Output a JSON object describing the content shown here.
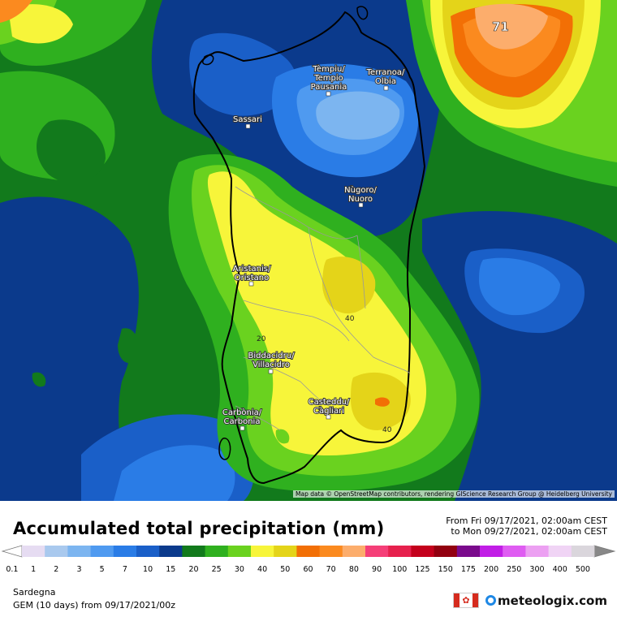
{
  "map": {
    "max_value_label": "71",
    "contour_labels": [
      "20",
      "40",
      "40"
    ],
    "attribution": "Map data © OpenStreetMap contributors, rendering GIScience Research Group @ Heidelberg University",
    "cities": [
      {
        "id": "tempio",
        "lines": [
          "Tèmpiu/",
          "Tempio",
          "Pausania"
        ]
      },
      {
        "id": "olbia",
        "lines": [
          "Terranoa/",
          "Olbia"
        ]
      },
      {
        "id": "sassari",
        "lines": [
          "Sassari"
        ]
      },
      {
        "id": "nuoro",
        "lines": [
          "Nùgoro/",
          "Nuoro"
        ]
      },
      {
        "id": "oristano",
        "lines": [
          "Aristanis/",
          "Oristano"
        ]
      },
      {
        "id": "villacidro",
        "lines": [
          "Biddacidru/",
          "Villacidro"
        ]
      },
      {
        "id": "cagliari",
        "lines": [
          "Casteddu/",
          "Càgliari"
        ]
      },
      {
        "id": "carbonia",
        "lines": [
          "Carbònia/",
          "Carbonia"
        ]
      }
    ]
  },
  "legend": {
    "title": "Accumulated total precipitation (mm)",
    "period_from": "From Fri 09/17/2021, 02:00am CEST",
    "period_to": "to Mon 09/27/2021, 02:00am CEST",
    "ticks": [
      "0.1",
      "1",
      "2",
      "3",
      "5",
      "7",
      "10",
      "15",
      "20",
      "25",
      "30",
      "40",
      "50",
      "60",
      "70",
      "80",
      "90",
      "100",
      "125",
      "150",
      "175",
      "200",
      "250",
      "300",
      "400",
      "500"
    ],
    "colors": [
      "#e6dcf2",
      "#a9c9ee",
      "#7cb5f0",
      "#4f9af0",
      "#2a7ce6",
      "#1a5fc8",
      "#0b3a8c",
      "#127a1c",
      "#2fb01f",
      "#6ad21f",
      "#f7f53a",
      "#e4d419",
      "#f26f05",
      "#fb8a1f",
      "#fcad6c",
      "#f53f78",
      "#e6214d",
      "#c4001c",
      "#920010",
      "#7a0a8c",
      "#c11ee6",
      "#df5cf2",
      "#eca0f2",
      "#f0d4f5",
      "#dad6dc"
    ]
  },
  "footer": {
    "region": "Sardegna",
    "model": "GEM (10 days) from 09/17/2021/00z",
    "brand": "meteologix.com",
    "flag_icon": "canada-flag-icon"
  }
}
